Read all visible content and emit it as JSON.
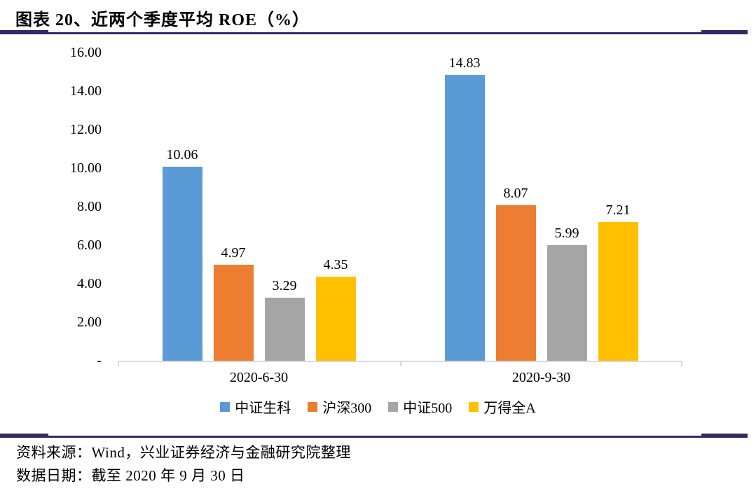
{
  "header": {
    "title": "图表 20、近两个季度平均 ROE（%）"
  },
  "chart_data": {
    "type": "bar",
    "title": "近两个季度平均 ROE（%）",
    "categories": [
      "2020-6-30",
      "2020-9-30"
    ],
    "series": [
      {
        "name": "中证生科",
        "color": "#5B9BD5",
        "values": [
          10.06,
          14.83
        ]
      },
      {
        "name": "沪深300",
        "color": "#ED7D31",
        "values": [
          4.97,
          8.07
        ]
      },
      {
        "name": "中证500",
        "color": "#A5A5A5",
        "values": [
          3.29,
          5.99
        ]
      },
      {
        "name": "万得全A",
        "color": "#FFC000",
        "values": [
          4.35,
          7.21
        ]
      }
    ],
    "xlabel": "",
    "ylabel": "",
    "ylim": [
      0,
      16
    ],
    "ytick_labels": [
      "16.00",
      "14.00",
      "12.00",
      "10.00",
      "8.00",
      "6.00",
      "4.00",
      "2.00",
      "-"
    ],
    "ytick_values": [
      16,
      14,
      12,
      10,
      8,
      6,
      4,
      2,
      0
    ],
    "grid": false,
    "legend_position": "bottom",
    "value_labels": true,
    "axis_color": "#D9D9D9"
  },
  "footer": {
    "line1": "资料来源：Wind，兴业证券经济与金融研究院整理",
    "line2": "数据日期：截至 2020 年 9 月 30 日"
  },
  "colors": {
    "rule": "#2E2C62"
  }
}
